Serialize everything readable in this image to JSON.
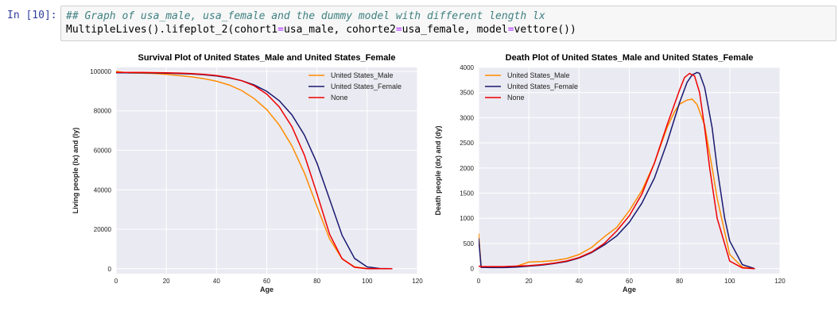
{
  "cell": {
    "prompt": "In [10]:",
    "comment": "## Graph of usa_male, usa_female and the dummy model with different length lx",
    "code_parts": [
      "MultipleLives().lifeplot_2(cohort1",
      "=",
      "usa_male, cohorte2",
      "=",
      "usa_female, model",
      "=",
      "vettore())"
    ]
  },
  "chart_data": [
    {
      "type": "line",
      "title": "Survival Plot of United States_Male and United States_Female",
      "xlabel": "Age",
      "ylabel": "Living people (lx) and (ly)",
      "xlim": [
        0,
        120
      ],
      "ylim": [
        -2500,
        102000
      ],
      "xticks": [
        0,
        20,
        40,
        60,
        80,
        100,
        120
      ],
      "yticks": [
        0,
        20000,
        40000,
        60000,
        80000,
        100000
      ],
      "grid": true,
      "legend": "top-right",
      "series": [
        {
          "name": "United States_Male",
          "color": "#ff8c00",
          "x": [
            0,
            5,
            10,
            15,
            20,
            25,
            30,
            35,
            40,
            45,
            50,
            55,
            60,
            65,
            70,
            75,
            80,
            85,
            90,
            95,
            100,
            105,
            110
          ],
          "y": [
            100000,
            99200,
            99050,
            98950,
            98500,
            97900,
            97200,
            96300,
            95000,
            93100,
            90300,
            86200,
            80600,
            72800,
            62300,
            48500,
            31500,
            15200,
            5000,
            900,
            120,
            20,
            0
          ]
        },
        {
          "name": "United States_Female",
          "color": "#191970",
          "x": [
            0,
            5,
            10,
            15,
            20,
            25,
            30,
            35,
            40,
            45,
            50,
            55,
            60,
            65,
            70,
            75,
            80,
            85,
            90,
            95,
            100,
            105,
            110
          ],
          "y": [
            99300,
            99300,
            99250,
            99200,
            99100,
            98900,
            98700,
            98300,
            97700,
            96700,
            95300,
            93100,
            89900,
            85100,
            78000,
            67700,
            53500,
            35300,
            16900,
            5200,
            900,
            100,
            0
          ]
        },
        {
          "name": "None",
          "color": "#ee0000",
          "x": [
            0,
            5,
            10,
            15,
            20,
            25,
            30,
            35,
            40,
            45,
            50,
            55,
            60,
            65,
            70,
            75,
            80,
            85,
            90,
            95,
            100,
            105,
            110
          ],
          "y": [
            99500,
            99480,
            99450,
            99400,
            99300,
            99150,
            98900,
            98500,
            97900,
            96900,
            95300,
            92700,
            88500,
            82000,
            72000,
            57500,
            38000,
            17500,
            5000,
            700,
            40,
            5,
            0
          ]
        }
      ]
    },
    {
      "type": "line",
      "title": "Death Plot of United States_Male and United States_Female",
      "xlabel": "Age",
      "ylabel": "Death people (dx) and (dy)",
      "xlim": [
        0,
        120
      ],
      "ylim": [
        -100,
        4000
      ],
      "xticks": [
        0,
        20,
        40,
        60,
        80,
        100,
        120
      ],
      "yticks": [
        0,
        500,
        1000,
        1500,
        2000,
        2500,
        3000,
        3500,
        4000
      ],
      "grid": true,
      "legend": "top-left",
      "series": [
        {
          "name": "United States_Male",
          "color": "#ff8c00",
          "x": [
            0,
            1,
            5,
            10,
            15,
            20,
            25,
            30,
            35,
            40,
            45,
            50,
            55,
            58,
            60,
            65,
            70,
            75,
            78,
            80,
            83,
            85,
            87,
            90,
            93,
            95,
            100,
            105,
            110
          ],
          "y": [
            700,
            30,
            25,
            25,
            45,
            130,
            140,
            160,
            200,
            280,
            420,
            630,
            820,
            1020,
            1150,
            1550,
            2100,
            2800,
            3120,
            3270,
            3350,
            3370,
            3260,
            2850,
            2000,
            1400,
            280,
            30,
            0
          ]
        },
        {
          "name": "United States_Female",
          "color": "#191970",
          "x": [
            0,
            1,
            5,
            10,
            15,
            20,
            25,
            30,
            35,
            40,
            45,
            50,
            55,
            60,
            65,
            70,
            75,
            80,
            83,
            85,
            87,
            88,
            90,
            93,
            95,
            98,
            100,
            105,
            110
          ],
          "y": [
            600,
            25,
            20,
            20,
            30,
            50,
            70,
            100,
            140,
            210,
            320,
            470,
            650,
            920,
            1300,
            1800,
            2500,
            3300,
            3700,
            3850,
            3900,
            3880,
            3600,
            2800,
            2000,
            1000,
            550,
            80,
            0
          ]
        },
        {
          "name": "None",
          "color": "#ee0000",
          "x": [
            0,
            1,
            5,
            10,
            15,
            20,
            25,
            30,
            35,
            40,
            45,
            50,
            55,
            60,
            65,
            70,
            75,
            80,
            82,
            84,
            86,
            88,
            90,
            92,
            95,
            100,
            105,
            110
          ],
          "y": [
            50,
            40,
            40,
            40,
            50,
            60,
            80,
            110,
            150,
            220,
            330,
            500,
            750,
            1050,
            1480,
            2100,
            2850,
            3550,
            3800,
            3880,
            3830,
            3500,
            2800,
            2000,
            1000,
            150,
            15,
            0
          ]
        }
      ]
    }
  ]
}
